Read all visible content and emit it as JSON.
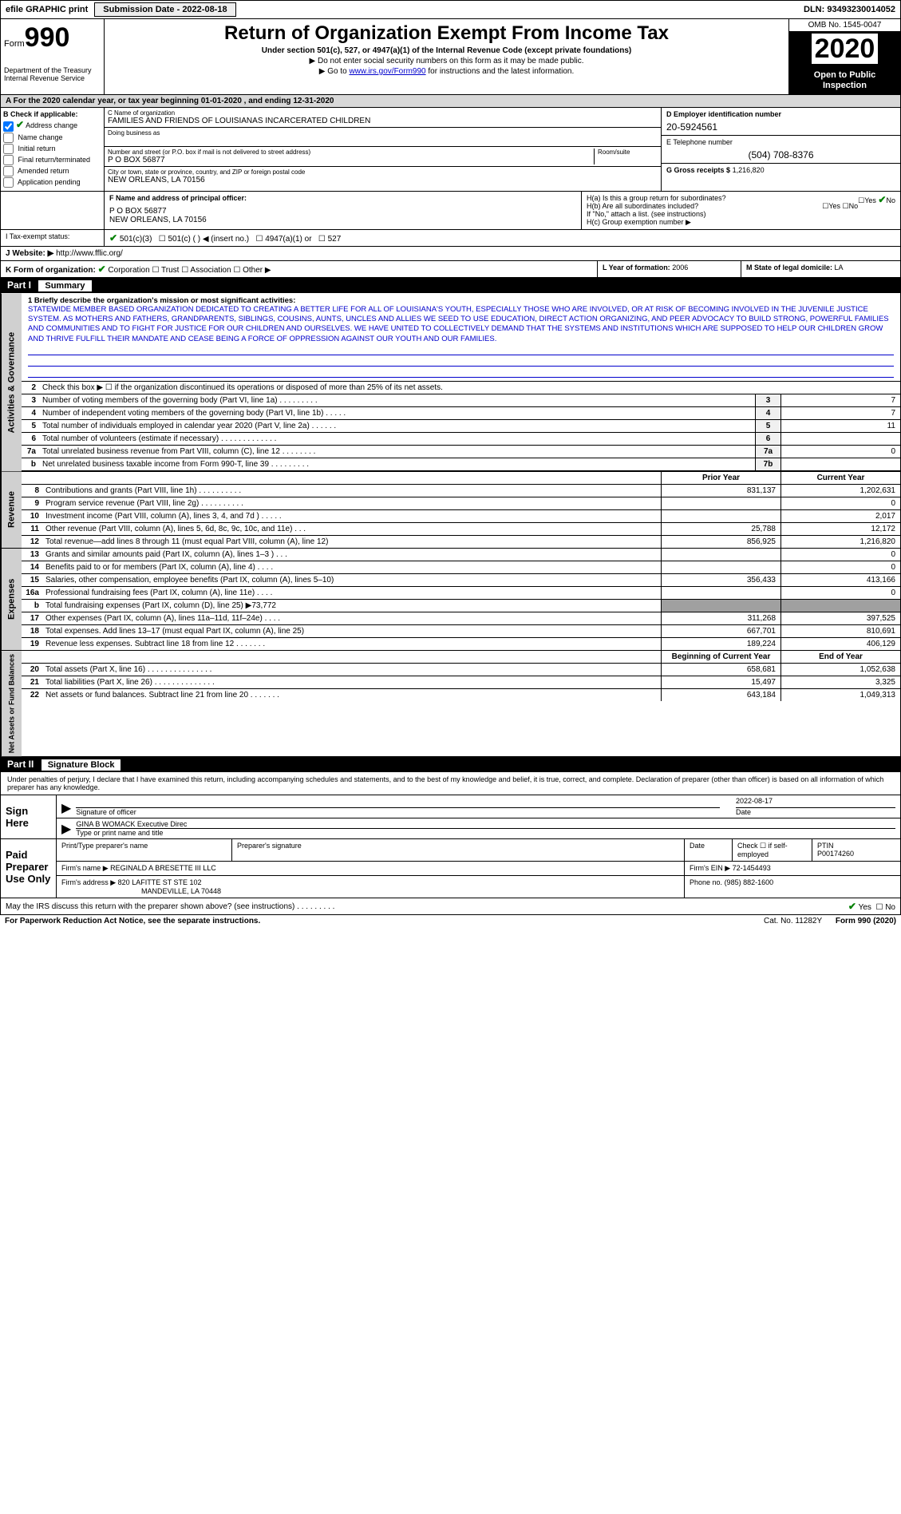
{
  "topbar": {
    "efile": "efile GRAPHIC print",
    "submission_label": "Submission Date - 2022-08-18",
    "dln": "DLN: 93493230014052"
  },
  "header": {
    "form_label": "Form",
    "form_number": "990",
    "dept1": "Department of the Treasury",
    "dept2": "Internal Revenue Service",
    "title": "Return of Organization Exempt From Income Tax",
    "sub": "Under section 501(c), 527, or 4947(a)(1) of the Internal Revenue Code (except private foundations)",
    "note1": "▶ Do not enter social security numbers on this form as it may be made public.",
    "note2_pre": "▶ Go to ",
    "note2_link": "www.irs.gov/Form990",
    "note2_post": " for instructions and the latest information.",
    "omb": "OMB No. 1545-0047",
    "year": "2020",
    "open1": "Open to Public",
    "open2": "Inspection"
  },
  "period": "A For the 2020 calendar year, or tax year beginning 01-01-2020    , and ending 12-31-2020",
  "sectionB": {
    "label": "B Check if applicable:",
    "address_change": "Address change",
    "name_change": "Name change",
    "initial_return": "Initial return",
    "final_return": "Final return/terminated",
    "amended": "Amended return",
    "application": "Application pending"
  },
  "sectionC": {
    "name_lbl": "C Name of organization",
    "name": "FAMILIES AND FRIENDS OF LOUISIANAS INCARCERATED CHILDREN",
    "dba_lbl": "Doing business as",
    "addr_lbl": "Number and street (or P.O. box if mail is not delivered to street address)",
    "addr": "P O BOX 56877",
    "room_lbl": "Room/suite",
    "city_lbl": "City or town, state or province, country, and ZIP or foreign postal code",
    "city": "NEW ORLEANS, LA  70156"
  },
  "sectionD": {
    "lbl": "D Employer identification number",
    "val": "20-5924561"
  },
  "sectionE": {
    "lbl": "E Telephone number",
    "val": "(504) 708-8376"
  },
  "sectionG": {
    "lbl": "G Gross receipts $",
    "val": "1,216,820"
  },
  "sectionF": {
    "lbl": "F Name and address of principal officer:",
    "line1": "P O BOX 56877",
    "line2": "NEW ORLEANS, LA  70156"
  },
  "sectionH": {
    "ha": "H(a)  Is this a group return for subordinates?",
    "hb": "H(b)  Are all subordinates included?",
    "hnote": "If \"No,\" attach a list. (see instructions)",
    "hc": "H(c)  Group exemption number ▶",
    "yes": "Yes",
    "no": "No"
  },
  "taxexempt": {
    "lbl": "I  Tax-exempt status:",
    "c501c3": "501(c)(3)",
    "c501c": "501(c) (  ) ◀ (insert no.)",
    "c4947": "4947(a)(1) or",
    "c527": "527"
  },
  "website": {
    "lbl": "J  Website: ▶",
    "val": "http://www.fflic.org/"
  },
  "sectionK": {
    "lbl": "K Form of organization:",
    "corp": "Corporation",
    "trust": "Trust",
    "assoc": "Association",
    "other": "Other ▶"
  },
  "sectionL": {
    "lbl": "L Year of formation:",
    "val": "2006"
  },
  "sectionM": {
    "lbl": "M State of legal domicile:",
    "val": "LA"
  },
  "part1": {
    "hdr": "Part I",
    "title": "Summary"
  },
  "vtabs": {
    "gov": "Activities & Governance",
    "rev": "Revenue",
    "exp": "Expenses",
    "net": "Net Assets or Fund Balances"
  },
  "mission": {
    "lbl": "1  Briefly describe the organization's mission or most significant activities:",
    "text": "STATEWIDE MEMBER BASED ORGANIZATION DEDICATED TO CREATING A BETTER LIFE FOR ALL OF LOUISIANA'S YOUTH, ESPECIALLY THOSE WHO ARE INVOLVED, OR AT RISK OF BECOMING INVOLVED IN THE JUVENILE JUSTICE SYSTEM. AS MOTHERS AND FATHERS, GRANDPARENTS, SIBLINGS, COUSINS, AUNTS, UNCLES AND ALLIES WE SEED TO USE EDUCATION, DIRECT ACTION ORGANIZING, AND PEER ADVOCACY TO BUILD STRONG, POWERFUL FAMILIES AND COMMUNITIES AND TO FIGHT FOR JUSTICE FOR OUR CHILDREN AND OURSELVES. WE HAVE UNITED TO COLLECTIVELY DEMAND THAT THE SYSTEMS AND INSTITUTIONS WHICH ARE SUPPOSED TO HELP OUR CHILDREN GROW AND THRIVE FULFILL THEIR MANDATE AND CEASE BEING A FORCE OF OPPRESSION AGAINST OUR YOUTH AND OUR FAMILIES."
  },
  "gov_rows": [
    {
      "n": "2",
      "desc": "Check this box ▶ ☐ if the organization discontinued its operations or disposed of more than 25% of its net assets.",
      "box": "",
      "val": ""
    },
    {
      "n": "3",
      "desc": "Number of voting members of the governing body (Part VI, line 1a)  .   .   .   .   .   .   .   .   .",
      "box": "3",
      "val": "7"
    },
    {
      "n": "4",
      "desc": "Number of independent voting members of the governing body (Part VI, line 1b)  .   .   .   .   .",
      "box": "4",
      "val": "7"
    },
    {
      "n": "5",
      "desc": "Total number of individuals employed in calendar year 2020 (Part V, line 2a)  .   .   .   .   .   .",
      "box": "5",
      "val": "11"
    },
    {
      "n": "6",
      "desc": "Total number of volunteers (estimate if necessary)  .   .   .   .   .   .   .   .   .   .   .   .   .",
      "box": "6",
      "val": ""
    },
    {
      "n": "7a",
      "desc": "Total unrelated business revenue from Part VIII, column (C), line 12  .   .   .   .   .   .   .   .",
      "box": "7a",
      "val": "0"
    },
    {
      "n": "b",
      "desc": "Net unrelated business taxable income from Form 990-T, line 39  .   .   .   .   .   .   .   .   .",
      "box": "7b",
      "val": ""
    }
  ],
  "fin_hdr": {
    "py": "Prior Year",
    "cy": "Current Year"
  },
  "revenue_rows": [
    {
      "n": "8",
      "desc": "Contributions and grants (Part VIII, line 1h)  .   .   .   .   .   .   .   .   .   .",
      "py": "831,137",
      "cy": "1,202,631"
    },
    {
      "n": "9",
      "desc": "Program service revenue (Part VIII, line 2g)  .   .   .   .   .   .   .   .   .   .",
      "py": "",
      "cy": "0"
    },
    {
      "n": "10",
      "desc": "Investment income (Part VIII, column (A), lines 3, 4, and 7d )  .   .   .   .   .",
      "py": "",
      "cy": "2,017"
    },
    {
      "n": "11",
      "desc": "Other revenue (Part VIII, column (A), lines 5, 6d, 8c, 9c, 10c, and 11e)  .   .   .",
      "py": "25,788",
      "cy": "12,172"
    },
    {
      "n": "12",
      "desc": "Total revenue—add lines 8 through 11 (must equal Part VIII, column (A), line 12)",
      "py": "856,925",
      "cy": "1,216,820"
    }
  ],
  "expense_rows": [
    {
      "n": "13",
      "desc": "Grants and similar amounts paid (Part IX, column (A), lines 1–3 )  .   .   .",
      "py": "",
      "cy": "0"
    },
    {
      "n": "14",
      "desc": "Benefits paid to or for members (Part IX, column (A), line 4)  .   .   .   .",
      "py": "",
      "cy": "0"
    },
    {
      "n": "15",
      "desc": "Salaries, other compensation, employee benefits (Part IX, column (A), lines 5–10)",
      "py": "356,433",
      "cy": "413,166"
    },
    {
      "n": "16a",
      "desc": "Professional fundraising fees (Part IX, column (A), line 11e)  .   .   .   .",
      "py": "",
      "cy": "0"
    },
    {
      "n": "b",
      "desc": "Total fundraising expenses (Part IX, column (D), line 25) ▶73,772",
      "py": "GRAY",
      "cy": "GRAY"
    },
    {
      "n": "17",
      "desc": "Other expenses (Part IX, column (A), lines 11a–11d, 11f–24e)  .   .   .   .",
      "py": "311,268",
      "cy": "397,525"
    },
    {
      "n": "18",
      "desc": "Total expenses. Add lines 13–17 (must equal Part IX, column (A), line 25)",
      "py": "667,701",
      "cy": "810,691"
    },
    {
      "n": "19",
      "desc": "Revenue less expenses. Subtract line 18 from line 12  .   .   .   .   .   .   .",
      "py": "189,224",
      "cy": "406,129"
    }
  ],
  "net_hdr": {
    "bcy": "Beginning of Current Year",
    "eoy": "End of Year"
  },
  "net_rows": [
    {
      "n": "20",
      "desc": "Total assets (Part X, line 16)  .   .   .   .   .   .   .   .   .   .   .   .   .   .   .",
      "py": "658,681",
      "cy": "1,052,638"
    },
    {
      "n": "21",
      "desc": "Total liabilities (Part X, line 26)  .   .   .   .   .   .   .   .   .   .   .   .   .   .",
      "py": "15,497",
      "cy": "3,325"
    },
    {
      "n": "22",
      "desc": "Net assets or fund balances. Subtract line 21 from line 20  .   .   .   .   .   .   .",
      "py": "643,184",
      "cy": "1,049,313"
    }
  ],
  "part2": {
    "hdr": "Part II",
    "title": "Signature Block"
  },
  "perjury": "Under penalties of perjury, I declare that I have examined this return, including accompanying schedules and statements, and to the best of my knowledge and belief, it is true, correct, and complete. Declaration of preparer (other than officer) is based on all information of which preparer has any knowledge.",
  "sign": {
    "lbl": "Sign Here",
    "sig_lbl": "Signature of officer",
    "date_lbl": "Date",
    "date": "2022-08-17",
    "name": "GINA B WOMACK  Executive Direc",
    "name_lbl": "Type or print name and title"
  },
  "prep": {
    "lbl": "Paid Preparer Use Only",
    "h1": "Print/Type preparer's name",
    "h2": "Preparer's signature",
    "h3": "Date",
    "h4": "Check ☐ if self-employed",
    "h5_lbl": "PTIN",
    "h5": "P00174260",
    "firm_lbl": "Firm's name    ▶",
    "firm": "REGINALD A BRESETTE III LLC",
    "ein_lbl": "Firm's EIN ▶",
    "ein": "72-1454493",
    "addr_lbl": "Firm's address ▶",
    "addr1": "820 LAFITTE ST STE 102",
    "addr2": "MANDEVILLE, LA  70448",
    "phone_lbl": "Phone no.",
    "phone": "(985) 882-1600"
  },
  "discuss": {
    "text": "May the IRS discuss this return with the preparer shown above? (see instructions)  .   .   .   .   .   .   .   .   .",
    "yes": "Yes",
    "no": "No"
  },
  "footer": {
    "left": "For Paperwork Reduction Act Notice, see the separate instructions.",
    "mid": "Cat. No. 11282Y",
    "right": "Form 990 (2020)"
  }
}
